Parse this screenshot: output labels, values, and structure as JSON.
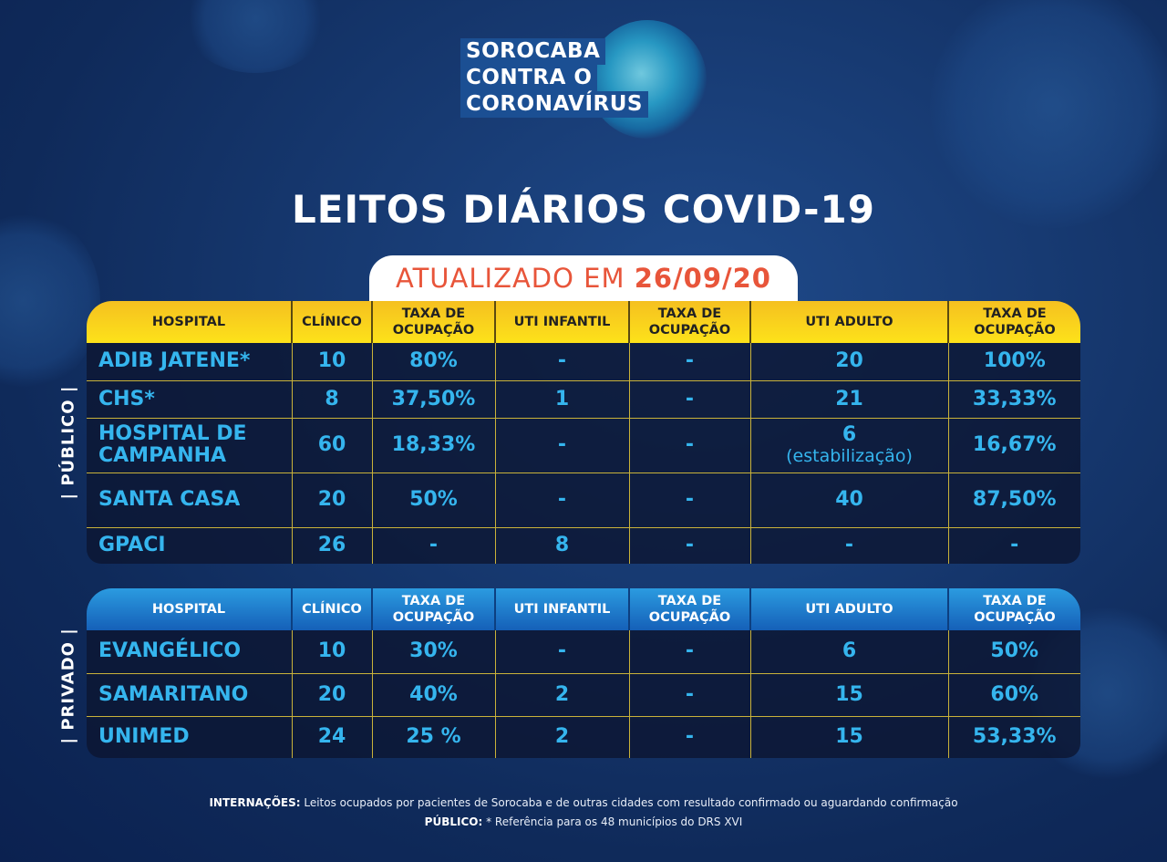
{
  "logo": {
    "lines": [
      "SOROCABA",
      "CONTRA O",
      "CORONAVÍRUS"
    ]
  },
  "title": "LEITOS DIÁRIOS COVID-19",
  "updated": {
    "label": "ATUALIZADO EM",
    "date": "26/09/20"
  },
  "headers": [
    "HOSPITAL",
    "CLÍNICO",
    "TAXA DE OCUPAÇÃO",
    "UTI INFANTIL",
    "TAXA DE OCUPAÇÃO",
    "UTI ADULTO",
    "TAXA DE OCUPAÇÃO"
  ],
  "public": {
    "label": "| PÚBLICO |",
    "rows": [
      [
        "ADIB JATENE*",
        "10",
        "80%",
        "-",
        "-",
        "20",
        "100%"
      ],
      [
        "CHS*",
        "8",
        "37,50%",
        "1",
        "-",
        "21",
        "33,33%"
      ],
      [
        "HOSPITAL DE CAMPANHA",
        "60",
        "18,33%",
        "-",
        "-",
        "6|(estabilização)",
        "16,67%"
      ],
      [
        "SANTA CASA",
        "20",
        "50%",
        "-",
        "-",
        "40",
        "87,50%"
      ],
      [
        "GPACI",
        "26",
        "-",
        "8",
        "-",
        "-",
        "-"
      ]
    ]
  },
  "private": {
    "label": "| PRIVADO |",
    "rows": [
      [
        "EVANGÉLICO",
        "10",
        "30%",
        "-",
        "-",
        "6",
        "50%"
      ],
      [
        "SAMARITANO",
        "20",
        "40%",
        "2",
        "-",
        "15",
        "60%"
      ],
      [
        "UNIMED",
        "24",
        "25 %",
        "2",
        "-",
        "15",
        "53,33%"
      ]
    ]
  },
  "footer": {
    "line1_bold": "INTERNAÇÕES:",
    "line1": " Leitos ocupados por pacientes de Sorocaba e de outras cidades com resultado confirmado ou aguardando confirmação",
    "line2_bold": "PÚBLICO:",
    "line2": " * Referência para os 48 municípios do DRS XVI"
  }
}
